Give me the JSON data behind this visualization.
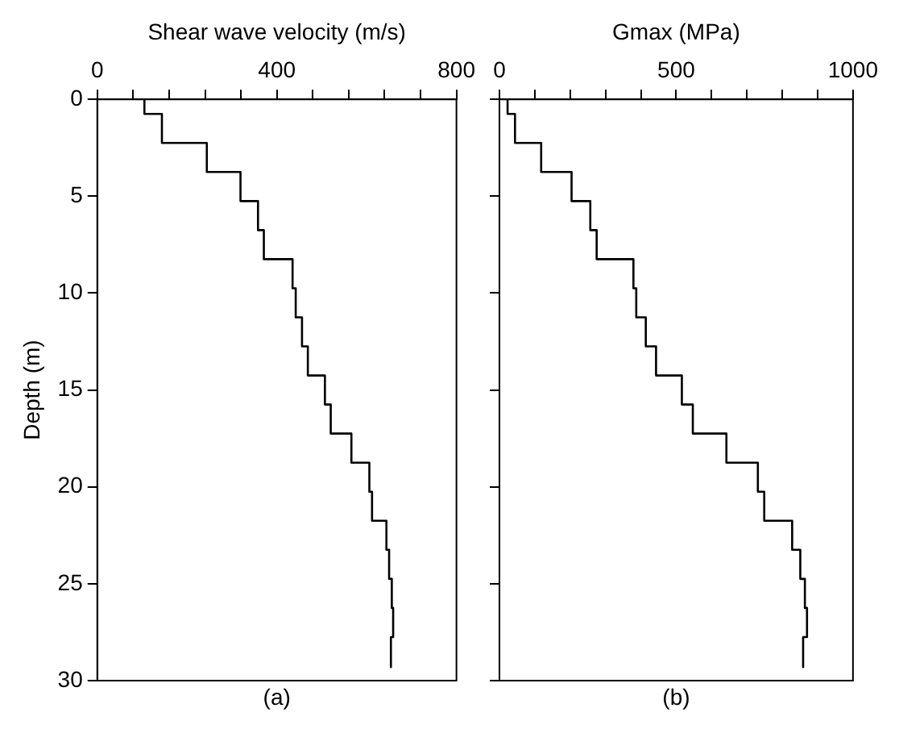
{
  "chart_data": [
    {
      "type": "line",
      "xlabel": "Shear wave velocity (m/s)",
      "ylabel": "Depth (m)",
      "annotations": [
        "(a)"
      ],
      "marker": "none",
      "line_style": "solid",
      "grid": false,
      "xlim": [
        0,
        800
      ],
      "xticks": [
        0,
        {
          "value": 80,
          "label": null
        },
        {
          "value": 160,
          "label": null
        },
        {
          "value": 240,
          "label": null
        },
        {
          "value": 320,
          "label": null
        },
        400,
        {
          "value": 480,
          "label": null
        },
        {
          "value": 560,
          "label": null
        },
        {
          "value": 640,
          "label": null
        },
        {
          "value": 720,
          "label": null
        },
        800
      ],
      "ylim": [
        30,
        0
      ],
      "yticks": [
        0,
        5,
        10,
        15,
        20,
        25,
        30
      ],
      "series": [
        {
          "color": "#000000",
          "x": [
            105,
            105,
            144,
            144,
            244,
            244,
            319,
            319,
            358,
            358,
            371,
            371,
            435,
            435,
            442,
            442,
            456,
            456,
            469,
            469,
            507,
            507,
            520,
            520,
            566,
            566,
            606,
            606,
            612,
            612,
            644,
            644,
            650,
            650,
            656,
            656,
            659,
            659,
            654,
            654
          ],
          "values": [
            0,
            0.75,
            0.75,
            2.25,
            2.25,
            3.75,
            3.75,
            5.25,
            5.25,
            6.75,
            6.75,
            8.25,
            8.25,
            9.75,
            9.75,
            11.25,
            11.25,
            12.75,
            12.75,
            14.25,
            14.25,
            15.75,
            15.75,
            17.25,
            17.25,
            18.75,
            18.75,
            20.25,
            20.25,
            21.75,
            21.75,
            23.25,
            23.25,
            24.75,
            24.75,
            26.25,
            26.25,
            27.75,
            27.75,
            29.3
          ]
        }
      ]
    },
    {
      "type": "line",
      "xlabel": "Gmax (MPa)",
      "annotations": [
        "(b)"
      ],
      "marker": "none",
      "line_style": "solid",
      "grid": false,
      "tick_labels": "x",
      "xlim": [
        0,
        1000
      ],
      "xticks": [
        0,
        {
          "value": 100,
          "label": null
        },
        {
          "value": 200,
          "label": null
        },
        {
          "value": 300,
          "label": null
        },
        {
          "value": 400,
          "label": null
        },
        500,
        {
          "value": 600,
          "label": null
        },
        {
          "value": 700,
          "label": null
        },
        {
          "value": 800,
          "label": null
        },
        {
          "value": 900,
          "label": null
        },
        1000
      ],
      "ylim": [
        30,
        0
      ],
      "yticks": [
        0,
        5,
        10,
        15,
        20,
        25,
        30
      ],
      "series": [
        {
          "color": "#000000",
          "x": [
            23,
            23,
            44,
            44,
            118,
            118,
            204,
            204,
            257,
            257,
            275,
            275,
            379,
            379,
            387,
            387,
            414,
            414,
            443,
            443,
            516,
            516,
            547,
            547,
            642,
            642,
            731,
            731,
            749,
            749,
            828,
            828,
            851,
            851,
            864,
            864,
            870,
            870,
            859,
            859
          ],
          "values": [
            0,
            0.75,
            0.75,
            2.25,
            2.25,
            3.75,
            3.75,
            5.25,
            5.25,
            6.75,
            6.75,
            8.25,
            8.25,
            9.75,
            9.75,
            11.25,
            11.25,
            12.75,
            12.75,
            14.25,
            14.25,
            15.75,
            15.75,
            17.25,
            17.25,
            18.75,
            18.75,
            20.25,
            20.25,
            21.75,
            21.75,
            23.25,
            23.25,
            24.75,
            24.75,
            26.25,
            26.25,
            27.75,
            27.75,
            29.3
          ]
        }
      ]
    }
  ]
}
